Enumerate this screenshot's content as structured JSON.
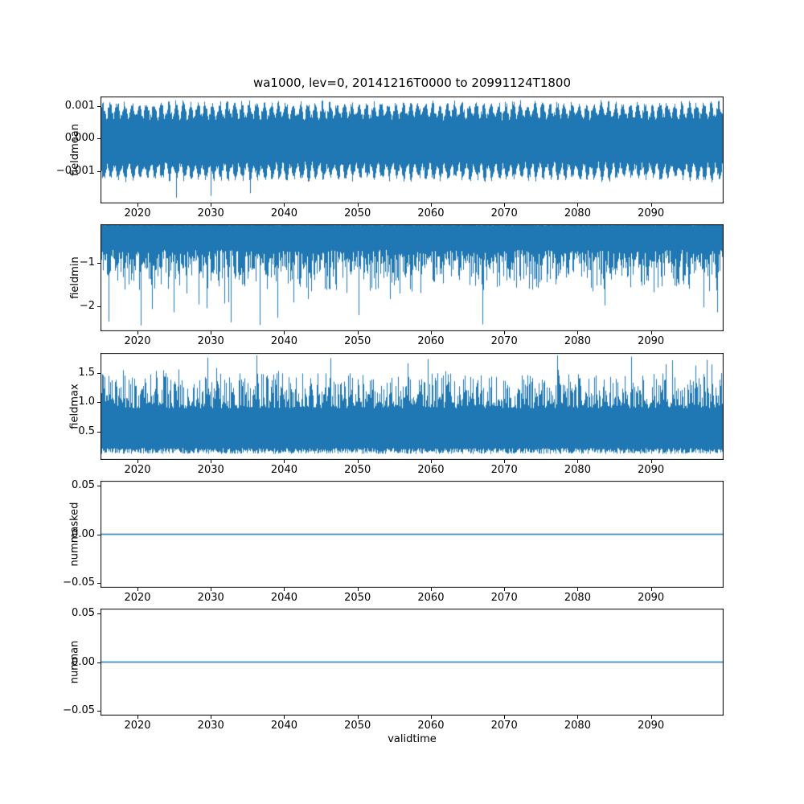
{
  "figure": {
    "title": "wa1000, lev=0, 20141216T0000 to 20991124T1800",
    "xlabel": "validtime",
    "line_color": "#1f77b4",
    "background": "#ffffff"
  },
  "chart_data": [
    {
      "type": "line",
      "name": "fieldmean",
      "ylabel": "fieldmean",
      "x_range": [
        2014.96,
        2099.9
      ],
      "xticks": [
        2020,
        2030,
        2040,
        2050,
        2060,
        2070,
        2080,
        2090
      ],
      "ylim": [
        -0.002,
        0.0013
      ],
      "yticks": [
        {
          "value": 0.001,
          "label": "0.001"
        },
        {
          "value": 0.0,
          "label": "0.000"
        },
        {
          "value": -0.001,
          "label": "−0.001"
        }
      ],
      "signal": {
        "kind": "noise_band",
        "seed": 11,
        "y_top": [
          0.00055,
          0.0012
        ],
        "y_bottom": [
          -0.00135,
          -0.0007
        ],
        "cycles": 85,
        "rare_spike": {
          "prob": 0.004,
          "y": [
            -0.0019,
            -0.0015
          ]
        }
      }
    },
    {
      "type": "line",
      "name": "fieldmin",
      "ylabel": "fieldmin",
      "x_range": [
        2014.96,
        2099.9
      ],
      "xticks": [
        2020,
        2030,
        2040,
        2050,
        2060,
        2070,
        2080,
        2090
      ],
      "ylim": [
        -2.574,
        -0.111
      ],
      "yticks": [
        {
          "value": -1,
          "label": "−1"
        },
        {
          "value": -2,
          "label": "−2"
        }
      ],
      "signal": {
        "kind": "noise_band",
        "seed": 22,
        "y_top": [
          -0.135,
          -0.111
        ],
        "y_bottom": [
          -1.75,
          -0.7
        ],
        "bottom_bias": 0.55,
        "rare_spike": {
          "prob": 0.025,
          "y": [
            -2.45,
            -1.8
          ]
        }
      }
    },
    {
      "type": "line",
      "name": "fieldmax",
      "ylabel": "fieldmax",
      "x_range": [
        2014.96,
        2099.9
      ],
      "xticks": [
        2020,
        2030,
        2040,
        2050,
        2060,
        2070,
        2080,
        2090
      ],
      "ylim": [
        0.02,
        1.84
      ],
      "yticks": [
        {
          "value": 1.5,
          "label": "1.5"
        },
        {
          "value": 1.0,
          "label": "1.0"
        },
        {
          "value": 0.5,
          "label": "0.5"
        }
      ],
      "signal": {
        "kind": "noise_band",
        "seed": 33,
        "y_top": [
          0.9,
          1.5
        ],
        "top_bias": 1.6,
        "y_bottom": [
          0.12,
          0.22
        ],
        "rare_spike": {
          "prob": 0.03,
          "y": [
            1.5,
            1.82
          ]
        }
      }
    },
    {
      "type": "line",
      "name": "nummasked",
      "ylabel": "nummasked",
      "x_range": [
        2014.96,
        2099.9
      ],
      "xticks": [
        2020,
        2030,
        2040,
        2050,
        2060,
        2070,
        2080,
        2090
      ],
      "ylim": [
        -0.055,
        0.055
      ],
      "yticks": [
        {
          "value": 0.05,
          "label": "0.05"
        },
        {
          "value": 0.0,
          "label": "0.00"
        },
        {
          "value": -0.05,
          "label": "−0.05"
        }
      ],
      "signal": {
        "kind": "flat",
        "y": 0,
        "seed": 44
      }
    },
    {
      "type": "line",
      "name": "numnan",
      "ylabel": "numnan",
      "x_range": [
        2014.96,
        2099.9
      ],
      "xticks": [
        2020,
        2030,
        2040,
        2050,
        2060,
        2070,
        2080,
        2090
      ],
      "ylim": [
        -0.055,
        0.055
      ],
      "yticks": [
        {
          "value": 0.05,
          "label": "0.05"
        },
        {
          "value": 0.0,
          "label": "0.00"
        },
        {
          "value": -0.05,
          "label": "−0.05"
        }
      ],
      "signal": {
        "kind": "flat",
        "y": 0,
        "seed": 55
      }
    }
  ]
}
